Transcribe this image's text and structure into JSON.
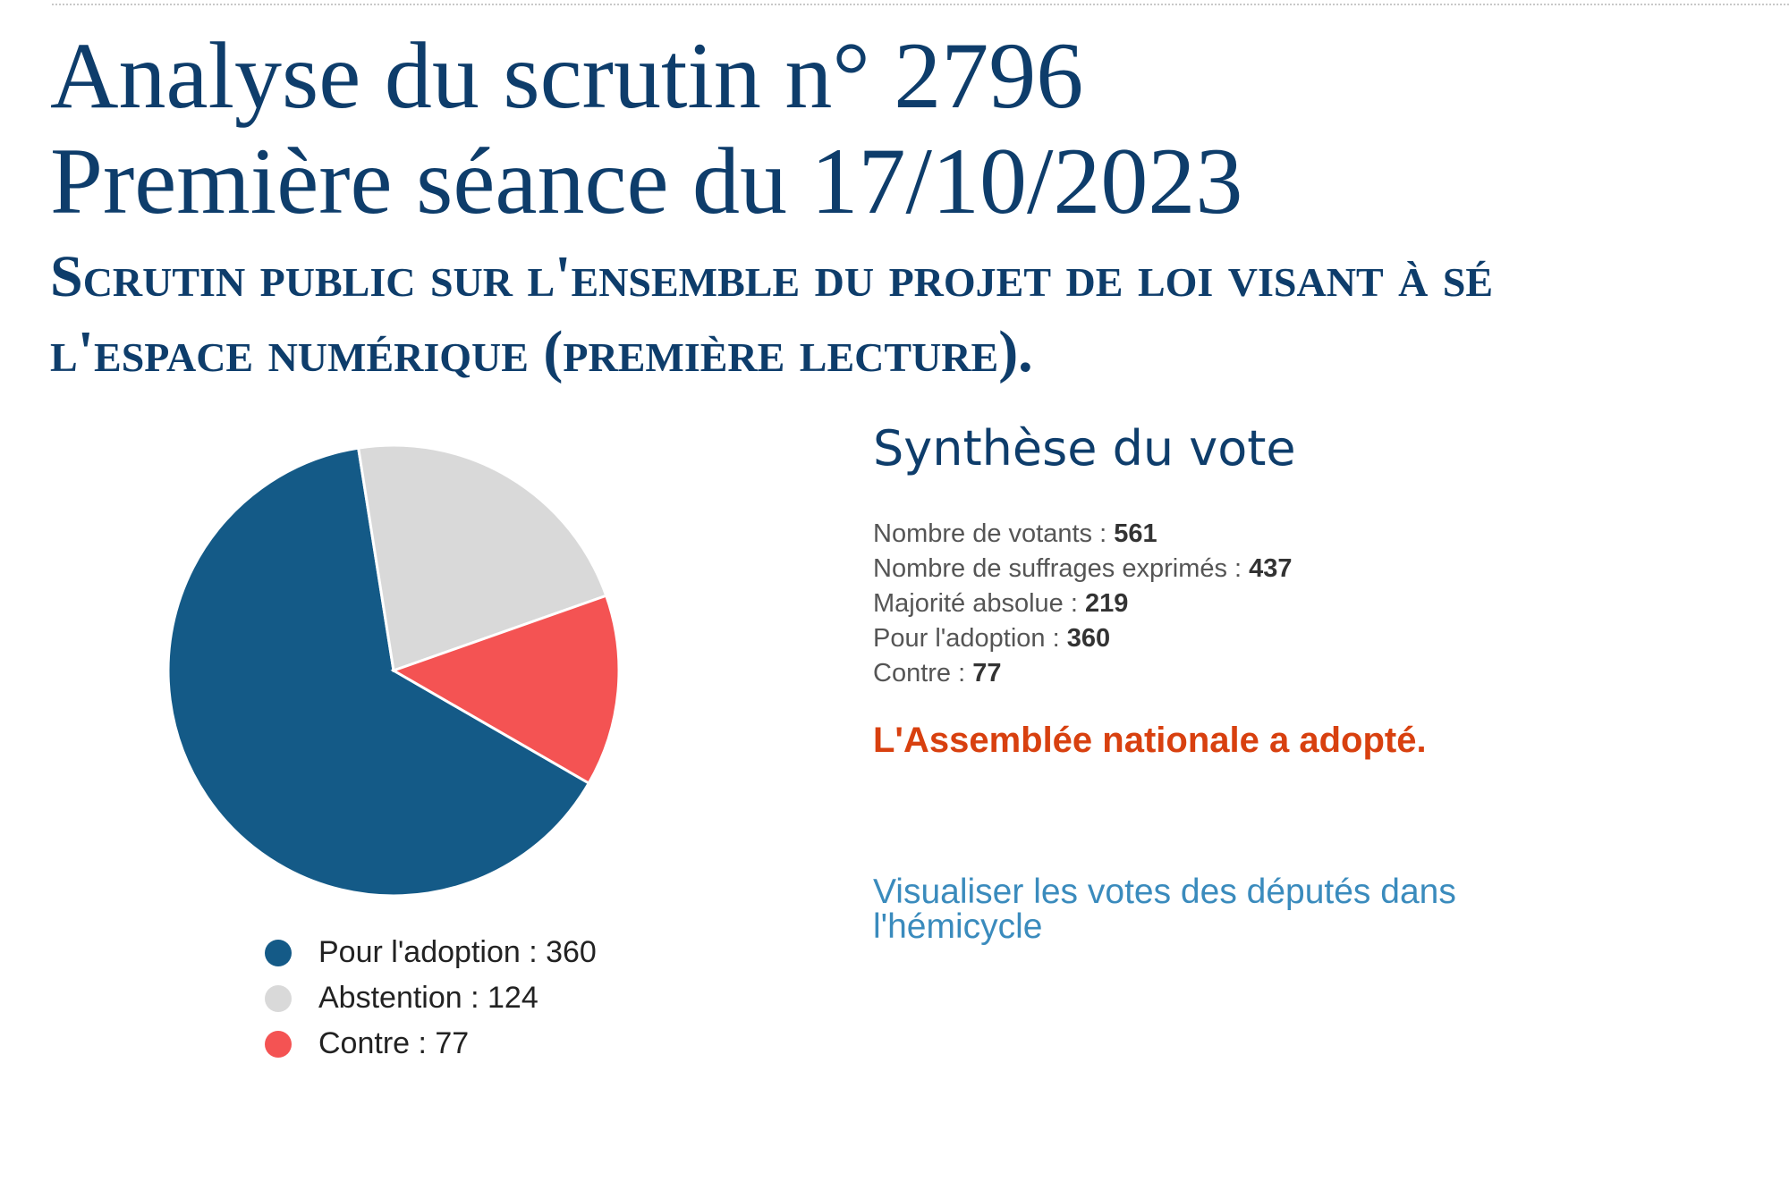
{
  "title": {
    "line1": "Analyse du scrutin n° 2796",
    "line2": "Première séance du 17/10/2023"
  },
  "subtitle": {
    "line1": "Scrutin public sur l'ensemble du projet de loi visant à sé",
    "line2": "l'espace numérique (première lecture)."
  },
  "summary": {
    "heading": "Synthèse du vote",
    "stats": [
      {
        "label": "Nombre de votants : ",
        "value": "561"
      },
      {
        "label": "Nombre de suffrages exprimés : ",
        "value": "437"
      },
      {
        "label": "Majorité absolue : ",
        "value": "219"
      },
      {
        "label": "Pour l'adoption : ",
        "value": "360"
      },
      {
        "label": "Contre : ",
        "value": "77"
      }
    ],
    "result": "L'Assemblée nationale a adopté.",
    "hemicycle_link": "Visualiser les votes des députés dans l'hémicycle"
  },
  "colors": {
    "title": "#0e3d6b",
    "result": "#d8400f",
    "link": "#3a8bbd"
  },
  "chart_data": {
    "type": "pie",
    "categories": [
      "Pour l'adoption",
      "Abstention",
      "Contre"
    ],
    "values": [
      360,
      124,
      77
    ],
    "colors": [
      "#145a87",
      "#d9d9d9",
      "#f45353"
    ],
    "legend_labels": [
      "Pour l'adoption : 360",
      "Abstention : 124",
      "Contre : 77"
    ],
    "legend_placement": "bottom"
  }
}
